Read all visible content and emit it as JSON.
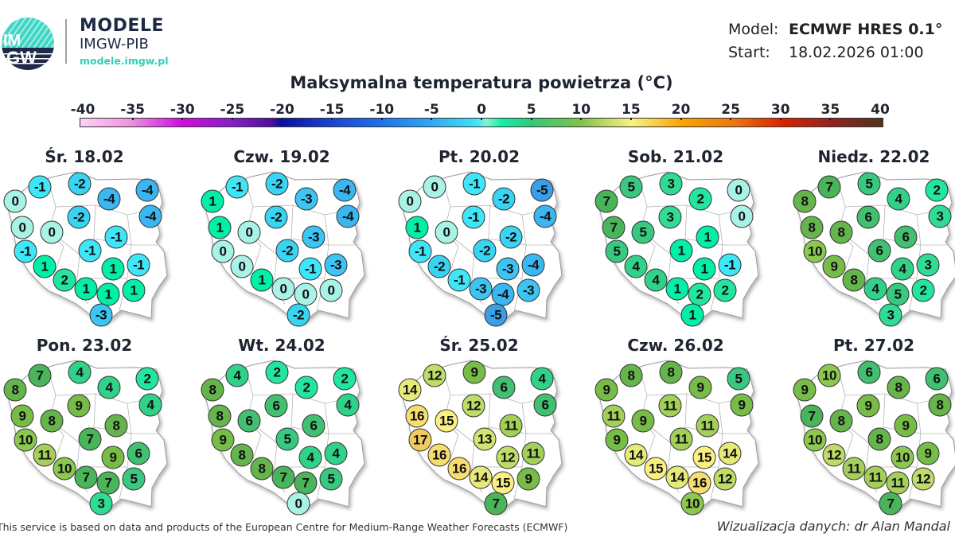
{
  "header": {
    "logo_text_top": "IM",
    "logo_text_bottom": "GW",
    "brand_title": "MODELE",
    "brand_subtitle": "IMGW-PIB",
    "brand_url": "modele.imgw.pl",
    "model_label": "Model:",
    "model_value": "ECMWF HRES 0.1°",
    "start_label": "Start:",
    "start_value": "18.02.2026 01:00"
  },
  "title": "Maksymalna temperatura powietrza (°C)",
  "colorbar": {
    "ticks": [
      "-40",
      "-35",
      "-30",
      "-25",
      "-20",
      "-15",
      "-10",
      "-5",
      "0",
      "5",
      "10",
      "15",
      "20",
      "25",
      "30",
      "35",
      "40"
    ],
    "range": [
      -40,
      40
    ],
    "stops": [
      [
        -40,
        "#fbd3f2"
      ],
      [
        -35,
        "#ee92e2"
      ],
      [
        -30,
        "#d010e0"
      ],
      [
        -25,
        "#8a20c8"
      ],
      [
        -21,
        "#50109a"
      ],
      [
        -20,
        "#0a109e"
      ],
      [
        -15,
        "#1a44d0"
      ],
      [
        -10,
        "#1f72ea"
      ],
      [
        -5,
        "#2ea8f0"
      ],
      [
        -0.5,
        "#40e4f8"
      ],
      [
        0.5,
        "#86f2d4"
      ],
      [
        2,
        "#10f0a6"
      ],
      [
        5,
        "#34c878"
      ],
      [
        10,
        "#84c24c"
      ],
      [
        15,
        "#fbf284"
      ],
      [
        20,
        "#f8a400"
      ],
      [
        25,
        "#ef7810"
      ],
      [
        30,
        "#d82400"
      ],
      [
        35,
        "#902420"
      ],
      [
        40,
        "#4e3420"
      ]
    ]
  },
  "station_colors": {
    "-5": "#3a9ee8",
    "-4": "#3ab6f0",
    "-3": "#3cc4f2",
    "-2": "#38d4f4",
    "-1": "#3ee6f8",
    "0": "#a8f2e6",
    "1": "#00f0a8",
    "2": "#22e6a0",
    "3": "#30dc94",
    "4": "#30d28a",
    "5": "#38c880",
    "6": "#40c070",
    "7": "#4ab45a",
    "8": "#66b44c",
    "9": "#78bc48",
    "10": "#8cc850",
    "11": "#a4d05a",
    "12": "#bedc66",
    "13": "#d2e470",
    "14": "#e6ea78",
    "15": "#faf080",
    "16": "#f6de70",
    "17": "#f0cc60"
  },
  "maps": [
    {
      "date": "Śr. 18.02",
      "values": [
        "-1",
        "0",
        "-2",
        "-4",
        "-4",
        "-4",
        "-2",
        "0",
        "0",
        "-1",
        "-1",
        "-1",
        "1",
        "1",
        "-1",
        "2",
        "1",
        "1",
        "1",
        "-3"
      ]
    },
    {
      "date": "Czw. 19.02",
      "values": [
        "-1",
        "1",
        "-2",
        "-3",
        "-4",
        "-4",
        "-2",
        "1",
        "0",
        "-3",
        "-2",
        "0",
        "0",
        "-1",
        "-3",
        "1",
        "0",
        "0",
        "0",
        "-2"
      ]
    },
    {
      "date": "Pt. 20.02",
      "values": [
        "0",
        "0",
        "-1",
        "-2",
        "-5",
        "-4",
        "-1",
        "1",
        "0",
        "-2",
        "-2",
        "-1",
        "-2",
        "-3",
        "-4",
        "-1",
        "-3",
        "-4",
        "-3",
        "-5"
      ]
    },
    {
      "date": "Sob. 21.02",
      "values": [
        "5",
        "7",
        "3",
        "2",
        "0",
        "0",
        "3",
        "7",
        "5",
        "1",
        "1",
        "5",
        "4",
        "1",
        "-1",
        "4",
        "1",
        "2",
        "2",
        "1"
      ]
    },
    {
      "date": "Niedz. 22.02",
      "values": [
        "7",
        "8",
        "5",
        "4",
        "2",
        "3",
        "6",
        "8",
        "8",
        "6",
        "6",
        "10",
        "9",
        "4",
        "3",
        "8",
        "4",
        "5",
        "2",
        "3"
      ]
    },
    {
      "date": "Pon. 23.02",
      "values": [
        "7",
        "8",
        "4",
        "4",
        "2",
        "4",
        "9",
        "9",
        "8",
        "8",
        "7",
        "10",
        "11",
        "9",
        "6",
        "10",
        "7",
        "7",
        "5",
        "3"
      ]
    },
    {
      "date": "Wt. 24.02",
      "values": [
        "4",
        "8",
        "2",
        "2",
        "2",
        "4",
        "6",
        "8",
        "6",
        "6",
        "5",
        "9",
        "8",
        "4",
        "4",
        "8",
        "7",
        "7",
        "5",
        "0"
      ]
    },
    {
      "date": "Śr. 25.02",
      "values": [
        "12",
        "14",
        "9",
        "6",
        "4",
        "6",
        "12",
        "16",
        "15",
        "11",
        "13",
        "17",
        "16",
        "12",
        "11",
        "16",
        "14",
        "15",
        "9",
        "7"
      ]
    },
    {
      "date": "Czw. 26.02",
      "values": [
        "8",
        "9",
        "8",
        "9",
        "5",
        "9",
        "11",
        "11",
        "9",
        "11",
        "11",
        "9",
        "14",
        "15",
        "14",
        "15",
        "14",
        "16",
        "12",
        "10"
      ]
    },
    {
      "date": "Pt. 27.02",
      "values": [
        "10",
        "9",
        "6",
        "8",
        "6",
        "8",
        "9",
        "7",
        "8",
        "9",
        "8",
        "10",
        "12",
        "10",
        "9",
        "11",
        "11",
        "11",
        "12",
        "7"
      ]
    }
  ],
  "footer": {
    "source": "This service is based on data and products of the European Centre for Medium-Range Weather Forecasts (ECMWF)",
    "credit": "Wizualizacja danych: dr Alan Mandal"
  }
}
